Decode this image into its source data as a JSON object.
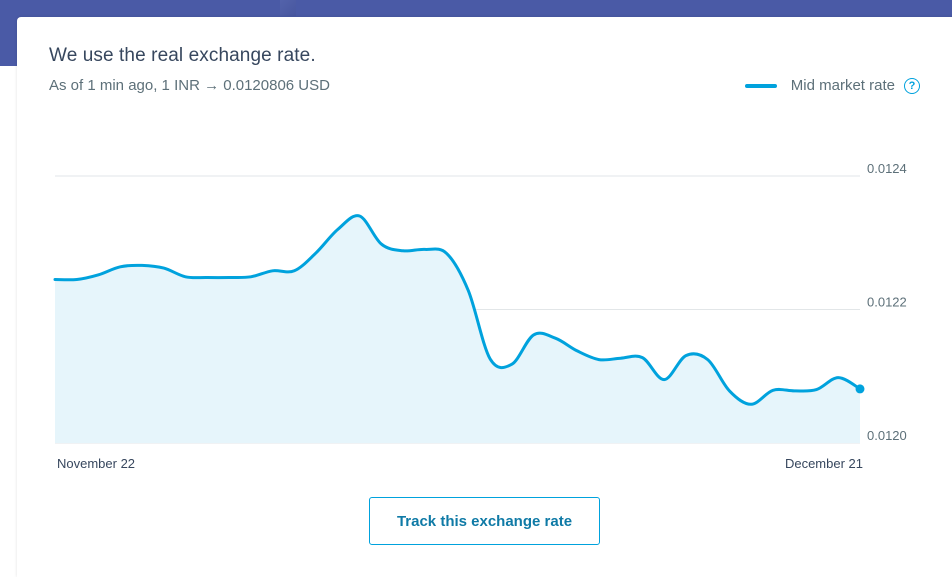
{
  "header": {
    "title": "We use the real exchange rate.",
    "subtitle": "As of 1 min ago, 1 INR → 0.0120806 USD"
  },
  "legend": {
    "label": "Mid market rate",
    "help_icon": "question-circle-icon",
    "help_glyph": "?"
  },
  "button": {
    "label": "Track this exchange rate"
  },
  "colors": {
    "line": "#00a2dd",
    "fill": "#e6f5fb",
    "grid": "#e2e6e8",
    "top_band": "#4a5aa6"
  },
  "chart_data": {
    "type": "area",
    "x_labels": [
      "November 22",
      "December 21"
    ],
    "y_ticks": [
      "0.0124",
      "0.0122",
      "0.0120"
    ],
    "ylim": [
      0.012,
      0.0124
    ],
    "grid": true,
    "legend_position": "top-right",
    "series": [
      {
        "name": "Mid market rate",
        "values": [
          0.012245,
          0.012245,
          0.012252,
          0.012264,
          0.012266,
          0.012262,
          0.012249,
          0.012248,
          0.012248,
          0.012249,
          0.012258,
          0.012258,
          0.012285,
          0.01232,
          0.01234,
          0.012298,
          0.012288,
          0.01229,
          0.012284,
          0.012228,
          0.012126,
          0.012118,
          0.012162,
          0.012157,
          0.012138,
          0.012125,
          0.012127,
          0.012128,
          0.012095,
          0.012131,
          0.012125,
          0.012078,
          0.012058,
          0.012079,
          0.012078,
          0.01208,
          0.012098,
          0.012081
        ]
      }
    ]
  }
}
